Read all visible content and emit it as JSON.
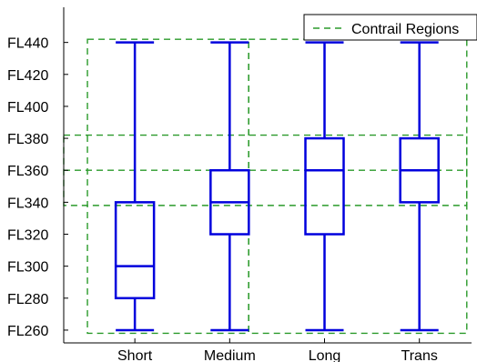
{
  "chart_data": {
    "type": "box",
    "categories": [
      "Short",
      "Medium",
      "Long",
      "Trans"
    ],
    "boxes": [
      {
        "min": 260,
        "q1": 280,
        "median": 300,
        "q3": 340,
        "max": 440
      },
      {
        "min": 260,
        "q1": 320,
        "median": 340,
        "q3": 360,
        "max": 440
      },
      {
        "min": 260,
        "q1": 320,
        "median": 360,
        "q3": 380,
        "max": 440
      },
      {
        "min": 260,
        "q1": 340,
        "median": 360,
        "q3": 380,
        "max": 440
      }
    ],
    "y_ticks": [
      260,
      280,
      300,
      320,
      340,
      360,
      380,
      400,
      420,
      440
    ],
    "y_tick_labels": [
      "FL260",
      "FL280",
      "FL300",
      "FL320",
      "FL340",
      "FL360",
      "FL380",
      "FL400",
      "FL420",
      "FL440"
    ],
    "ylim": [
      252,
      462
    ],
    "xlim": [
      0.25,
      4.55
    ],
    "legend": {
      "label": "Contrail Regions",
      "position": "top-right"
    },
    "contrail_regions": [
      {
        "x0": 0.5,
        "x1": 2.2,
        "y0": 258,
        "y1": 442
      },
      {
        "x0": 0.25,
        "x1": 4.5,
        "y0": 338,
        "y1": 382
      },
      {
        "x0": 2.2,
        "x1": 4.5,
        "y0": 258,
        "y1": 442
      }
    ],
    "contrail_midline": 360,
    "grid": false,
    "colors": {
      "box": "#0000dd",
      "region": "#2a9a2a",
      "axis": "#000000"
    }
  }
}
